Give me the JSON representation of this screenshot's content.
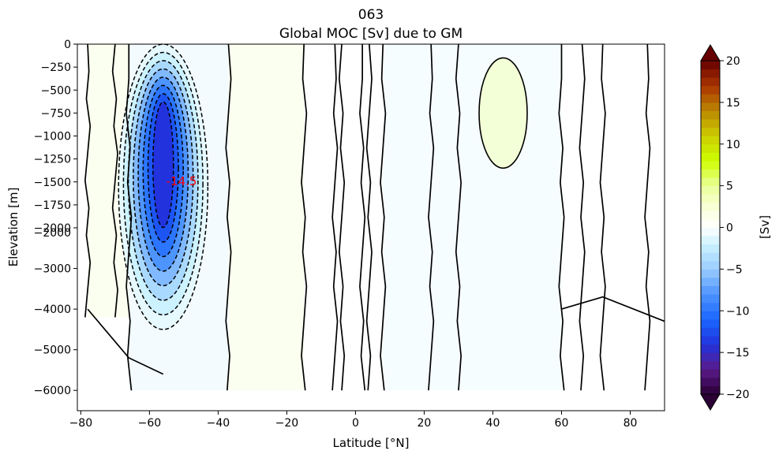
{
  "chart_data": {
    "type": "heatmap",
    "title": "063",
    "subtitle": "Global MOC [Sv] due to GM",
    "xlabel": "Latitude [°N]",
    "ylabel": "Elevation [m]",
    "xlim": [
      -81,
      90
    ],
    "x_ticks": [
      -80,
      -60,
      -40,
      -20,
      0,
      20,
      40,
      60,
      80
    ],
    "y_ticks_upper": [
      0,
      -250,
      -500,
      -750,
      -1000,
      -1250,
      -1500,
      -1750,
      -2000
    ],
    "y_ticks_lower": [
      -2000,
      -3000,
      -4000,
      -5000,
      -6000
    ],
    "y_scale": "piecewise linear: 0 to -2000 m stretched in upper part, -2000 to -6500 m in lower part",
    "ylim": [
      -6500,
      0
    ],
    "annotation": {
      "text": "-14.5",
      "x": -52,
      "y": -1500,
      "color": "#ff0000"
    },
    "colorbar": {
      "label": "[Sv]",
      "min": -20,
      "max": 20,
      "step": 1,
      "ticks": [
        -20,
        -15,
        -10,
        -5,
        0,
        5,
        10,
        15,
        20
      ],
      "extend": "both",
      "stops": [
        {
          "v": -20,
          "c": "#2a0035"
        },
        {
          "v": -17,
          "c": "#5a1a8a"
        },
        {
          "v": -14,
          "c": "#2233dd"
        },
        {
          "v": -11,
          "c": "#1a66ff"
        },
        {
          "v": -8,
          "c": "#4d94ff"
        },
        {
          "v": -5,
          "c": "#99ccff"
        },
        {
          "v": -2,
          "c": "#ccf2ff"
        },
        {
          "v": 0,
          "c": "#ffffff"
        },
        {
          "v": 2,
          "c": "#fbffe0"
        },
        {
          "v": 5,
          "c": "#eaff99"
        },
        {
          "v": 8,
          "c": "#ccff00"
        },
        {
          "v": 11,
          "c": "#cccc00"
        },
        {
          "v": 14,
          "c": "#bb8800"
        },
        {
          "v": 17,
          "c": "#aa3300"
        },
        {
          "v": 20,
          "c": "#660000"
        }
      ]
    },
    "features": [
      {
        "name": "southern-cell",
        "lat_range": [
          -66,
          -40
        ],
        "depth_range": [
          0,
          -4500
        ],
        "min_value": -14.5,
        "center_lat": -56
      },
      {
        "name": "positive-patch-north",
        "lat_range": [
          36,
          50
        ],
        "depth_range": [
          -150,
          -1350
        ],
        "value": 1
      }
    ]
  }
}
